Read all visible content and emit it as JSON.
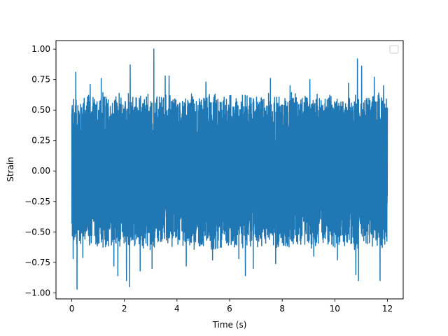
{
  "chart_data": {
    "type": "line",
    "title": "",
    "xlabel": "Time (s)",
    "ylabel": "Strain",
    "xlim": [
      -0.6,
      12.6
    ],
    "ylim": [
      -1.05,
      1.07
    ],
    "xticks": [
      {
        "value": 0,
        "label": "0"
      },
      {
        "value": 2,
        "label": "2"
      },
      {
        "value": 4,
        "label": "4"
      },
      {
        "value": 6,
        "label": "6"
      },
      {
        "value": 8,
        "label": "8"
      },
      {
        "value": 10,
        "label": "10"
      },
      {
        "value": 12,
        "label": "12"
      }
    ],
    "yticks": [
      {
        "value": 1.0,
        "label": "1.00"
      },
      {
        "value": 0.75,
        "label": "0.75"
      },
      {
        "value": 0.5,
        "label": "0.50"
      },
      {
        "value": 0.25,
        "label": "0.25"
      },
      {
        "value": 0.0,
        "label": "0.00"
      },
      {
        "value": -0.25,
        "label": "−0.25"
      },
      {
        "value": -0.5,
        "label": "−0.50"
      },
      {
        "value": -0.75,
        "label": "−0.75"
      },
      {
        "value": -1.0,
        "label": "−1.00"
      }
    ],
    "grid": false,
    "legend": {
      "placement": "top-right",
      "entries": []
    },
    "series": [
      {
        "color": "#1f77b4",
        "x_start": 0,
        "x_end": 12,
        "baseline_amplitude": 0.6,
        "peaks": [
          {
            "x": 0.15,
            "y": 0.81
          },
          {
            "x": 0.2,
            "y": -0.97
          },
          {
            "x": 0.05,
            "y": -0.72
          },
          {
            "x": 0.42,
            "y": -0.71
          },
          {
            "x": 0.7,
            "y": 0.71
          },
          {
            "x": 1.12,
            "y": 0.76
          },
          {
            "x": 1.6,
            "y": -0.78
          },
          {
            "x": 1.75,
            "y": -0.86
          },
          {
            "x": 2.08,
            "y": -0.9
          },
          {
            "x": 2.2,
            "y": -0.95
          },
          {
            "x": 2.22,
            "y": 0.87
          },
          {
            "x": 2.6,
            "y": -0.82
          },
          {
            "x": 3.12,
            "y": 1.0
          },
          {
            "x": 3.05,
            "y": -0.8
          },
          {
            "x": 3.55,
            "y": 0.78
          },
          {
            "x": 3.7,
            "y": 0.78
          },
          {
            "x": 4.35,
            "y": -0.78
          },
          {
            "x": 5.1,
            "y": 0.73
          },
          {
            "x": 5.35,
            "y": -0.73
          },
          {
            "x": 6.6,
            "y": -0.86
          },
          {
            "x": 6.35,
            "y": -0.72
          },
          {
            "x": 6.9,
            "y": -0.8
          },
          {
            "x": 7.55,
            "y": 0.76
          },
          {
            "x": 7.75,
            "y": -0.76
          },
          {
            "x": 8.3,
            "y": 0.7
          },
          {
            "x": 9.05,
            "y": 0.75
          },
          {
            "x": 9.2,
            "y": -0.7
          },
          {
            "x": 10.1,
            "y": -0.73
          },
          {
            "x": 10.52,
            "y": 0.72
          },
          {
            "x": 10.8,
            "y": -0.85
          },
          {
            "x": 10.9,
            "y": -0.9
          },
          {
            "x": 10.86,
            "y": 0.92
          },
          {
            "x": 11.02,
            "y": 0.86
          },
          {
            "x": 11.5,
            "y": 0.77
          },
          {
            "x": 11.72,
            "y": -0.9
          },
          {
            "x": 11.85,
            "y": 0.7
          }
        ]
      }
    ]
  }
}
